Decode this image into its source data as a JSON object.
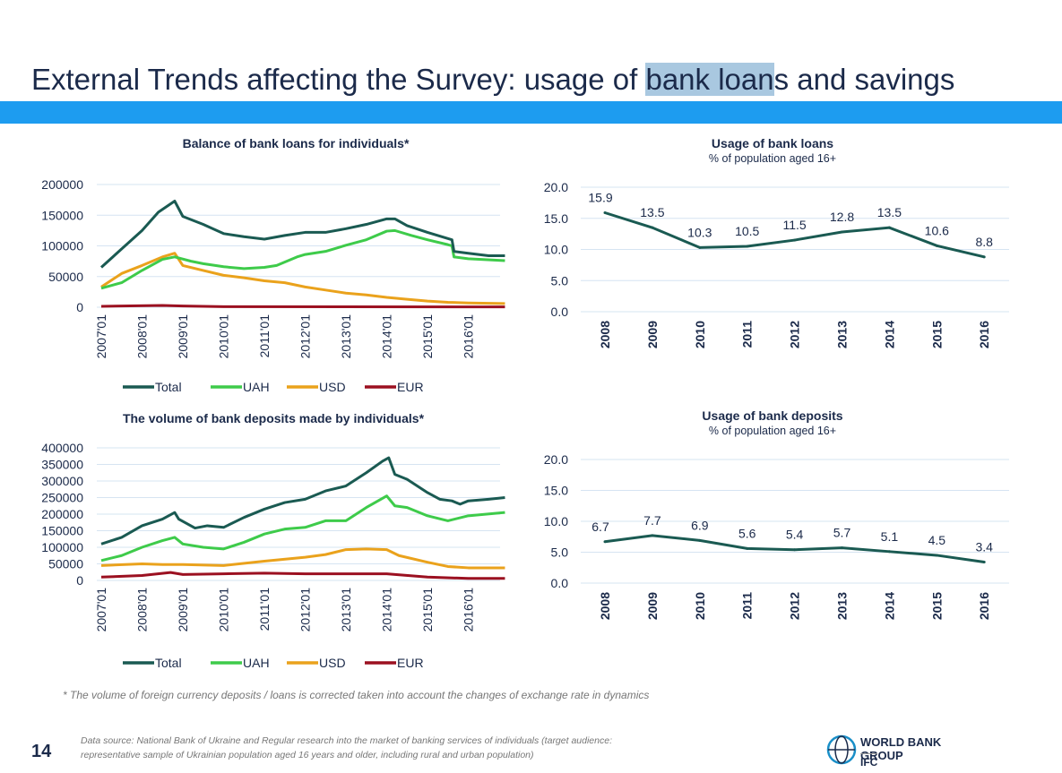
{
  "header": {
    "title_pre": "External Trends affecting the Survey: usage of ",
    "title_hl": "bank loan",
    "title_post": "s and savings"
  },
  "colors": {
    "Total": "#1a5a52",
    "UAH": "#3ecb4a",
    "USD": "#eaa21c",
    "EUR": "#9b1020",
    "single": "#1a5a52",
    "band": "#1d9cf0"
  },
  "chart_data": [
    {
      "id": "loans_balance",
      "type": "line",
      "title": "Balance of bank loans for individuals*",
      "ylim": [
        0,
        200000
      ],
      "yticks": [
        0,
        50000,
        100000,
        150000,
        200000
      ],
      "xticks": [
        "2007'01",
        "2008'01",
        "2009'01",
        "2010'01",
        "2011'01",
        "2012'01",
        "2013'01",
        "2014'01",
        "2015'01",
        "2016'01"
      ],
      "xlim": [
        2007,
        2016.9
      ],
      "legend": "bottom",
      "series": [
        {
          "name": "Total",
          "x": [
            2007,
            2007.5,
            2008,
            2008.4,
            2008.8,
            2009,
            2009.5,
            2010,
            2010.5,
            2011,
            2011.5,
            2012,
            2012.5,
            2013,
            2013.5,
            2014,
            2014.2,
            2014.5,
            2015,
            2015.5,
            2015.6,
            2015.65,
            2016,
            2016.5,
            2016.9
          ],
          "y": [
            65000,
            95000,
            125000,
            155000,
            173000,
            148000,
            135000,
            120000,
            115000,
            111000,
            117000,
            122000,
            122000,
            128000,
            135000,
            144000,
            144000,
            133000,
            122000,
            112000,
            110000,
            91000,
            88000,
            84000,
            84000
          ]
        },
        {
          "name": "UAH",
          "x": [
            2007,
            2007.5,
            2008,
            2008.5,
            2008.8,
            2009.2,
            2009.5,
            2010,
            2010.5,
            2011,
            2011.3,
            2011.8,
            2012,
            2012.5,
            2013,
            2013.5,
            2014,
            2014.2,
            2014.6,
            2015,
            2015.5,
            2015.6,
            2015.65,
            2016,
            2016.9
          ],
          "y": [
            31000,
            40000,
            60000,
            78000,
            82000,
            75000,
            71000,
            66000,
            63000,
            65000,
            68000,
            82000,
            86000,
            91000,
            101000,
            110000,
            124000,
            125000,
            117000,
            110000,
            102000,
            100000,
            82000,
            79000,
            76000
          ]
        },
        {
          "name": "USD",
          "x": [
            2007,
            2007.5,
            2008,
            2008.5,
            2008.8,
            2009,
            2009.5,
            2010,
            2010.5,
            2011,
            2011.5,
            2012,
            2012.5,
            2013,
            2013.5,
            2014,
            2014.5,
            2015,
            2015.5,
            2016,
            2016.9
          ],
          "y": [
            33000,
            55000,
            68000,
            82000,
            88000,
            68000,
            60000,
            52000,
            48000,
            43000,
            40000,
            33000,
            28000,
            23000,
            20000,
            16000,
            13000,
            10000,
            8000,
            7000,
            6000
          ]
        },
        {
          "name": "EUR",
          "x": [
            2007,
            2008.5,
            2009,
            2010,
            2016.9
          ],
          "y": [
            1500,
            3000,
            2000,
            1000,
            500
          ]
        }
      ]
    },
    {
      "id": "deposits_volume",
      "type": "line",
      "title": "The volume of bank deposits made by individuals*",
      "ylim": [
        0,
        400000
      ],
      "yticks": [
        0,
        50000,
        100000,
        150000,
        200000,
        250000,
        300000,
        350000,
        400000
      ],
      "xticks": [
        "2007'01",
        "2008'01",
        "2009'01",
        "2010'01",
        "2011'01",
        "2012'01",
        "2013'01",
        "2014'01",
        "2015'01",
        "2016'01"
      ],
      "xlim": [
        2007,
        2016.9
      ],
      "legend": "bottom",
      "series": [
        {
          "name": "Total",
          "x": [
            2007,
            2007.5,
            2008,
            2008.5,
            2008.8,
            2008.9,
            2009.3,
            2009.6,
            2010,
            2010.5,
            2011,
            2011.5,
            2012,
            2012.5,
            2013,
            2013.5,
            2013.9,
            2014.05,
            2014.2,
            2014.5,
            2015,
            2015.3,
            2015.6,
            2015.8,
            2016,
            2016.5,
            2016.9
          ],
          "y": [
            110000,
            130000,
            165000,
            185000,
            205000,
            185000,
            158000,
            165000,
            160000,
            190000,
            215000,
            235000,
            245000,
            270000,
            285000,
            325000,
            360000,
            370000,
            320000,
            305000,
            265000,
            245000,
            240000,
            230000,
            240000,
            245000,
            250000
          ]
        },
        {
          "name": "UAH",
          "x": [
            2007,
            2007.5,
            2008,
            2008.5,
            2008.8,
            2009,
            2009.5,
            2010,
            2010.5,
            2011,
            2011.5,
            2012,
            2012.5,
            2013,
            2013.5,
            2014,
            2014.2,
            2014.5,
            2015,
            2015.5,
            2016,
            2016.9
          ],
          "y": [
            60000,
            75000,
            100000,
            120000,
            130000,
            110000,
            100000,
            95000,
            115000,
            140000,
            155000,
            160000,
            180000,
            180000,
            220000,
            255000,
            225000,
            220000,
            195000,
            180000,
            195000,
            205000
          ]
        },
        {
          "name": "USD",
          "x": [
            2007,
            2008,
            2008.5,
            2009,
            2010,
            2011,
            2012,
            2012.5,
            2013,
            2013.5,
            2014,
            2014.3,
            2015,
            2015.5,
            2016,
            2016.9
          ],
          "y": [
            45000,
            50000,
            48000,
            48000,
            45000,
            58000,
            70000,
            78000,
            93000,
            95000,
            93000,
            75000,
            55000,
            42000,
            38000,
            38000
          ]
        },
        {
          "name": "EUR",
          "x": [
            2007,
            2008,
            2008.7,
            2009,
            2010,
            2011,
            2012,
            2013,
            2014,
            2015,
            2016,
            2016.9
          ],
          "y": [
            10000,
            15000,
            24000,
            18000,
            20000,
            22000,
            20000,
            20000,
            20000,
            10000,
            6000,
            6000
          ]
        }
      ]
    },
    {
      "id": "loans_usage",
      "type": "line",
      "title": "Usage of bank loans",
      "subtitle": "% of population aged 16+",
      "ylim": [
        0,
        20
      ],
      "yticks": [
        "0.0",
        "5.0",
        "10.0",
        "15.0",
        "20.0"
      ],
      "categories": [
        "2008",
        "2009",
        "2010",
        "2011",
        "2012",
        "2013",
        "2014",
        "2015",
        "2016"
      ],
      "values": [
        15.9,
        13.5,
        10.3,
        10.5,
        11.5,
        12.8,
        13.5,
        10.6,
        8.8
      ],
      "labels": [
        "15.9",
        "13.5",
        "10.3",
        "10.5",
        "11.5",
        "12.8",
        "13.5",
        "10.6",
        "8.8"
      ]
    },
    {
      "id": "deposits_usage",
      "type": "line",
      "title": "Usage of bank deposits",
      "subtitle": "% of population aged 16+",
      "ylim": [
        0,
        20
      ],
      "yticks": [
        "0.0",
        "5.0",
        "10.0",
        "15.0",
        "20.0"
      ],
      "categories": [
        "2008",
        "2009",
        "2010",
        "2011",
        "2012",
        "2013",
        "2014",
        "2015",
        "2016"
      ],
      "values": [
        6.7,
        7.7,
        6.9,
        5.6,
        5.4,
        5.7,
        5.1,
        4.5,
        3.4
      ],
      "labels": [
        "6.7",
        "7.7",
        "6.9",
        "5.6",
        "5.4",
        "5.7",
        "5.1",
        "4.5",
        "3.4"
      ]
    }
  ],
  "footer": {
    "note": "* The volume of foreign currency deposits / loans is corrected taken into account the changes of exchange rate in dynamics",
    "page": "14",
    "source_1": "Data source: National Bank of Ukraine and Regular research into the market of banking services of individuals (target audience:",
    "source_2": "representative sample of Ukrainian population aged 16 years and older, including rural and urban population)",
    "logo_1": "WORLD BANK GROUP",
    "logo_2": "IFC"
  }
}
